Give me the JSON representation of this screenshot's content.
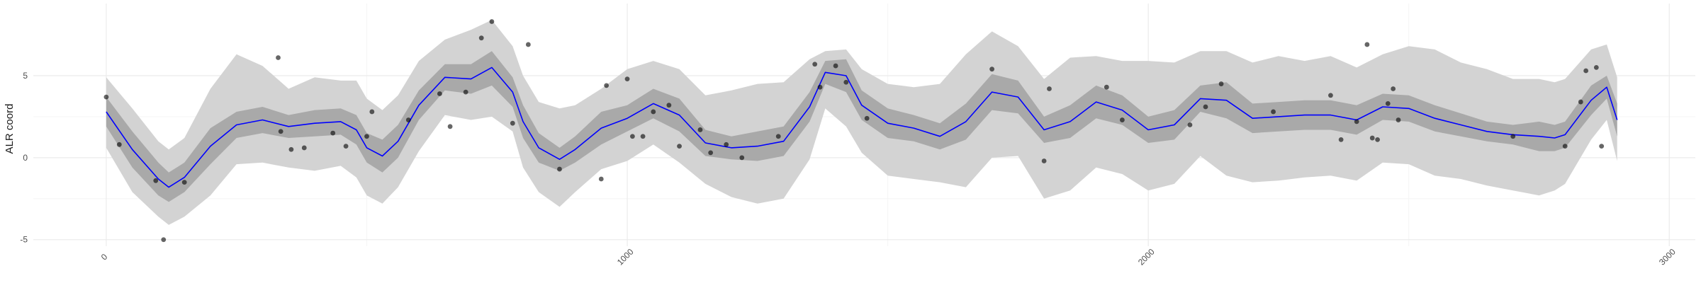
{
  "chart_data": {
    "type": "line",
    "title": "",
    "xlabel": "",
    "ylabel": "ALR coord",
    "xlim": [
      -140,
      3050
    ],
    "ylim": [
      -5.4,
      9.4
    ],
    "x_ticks": [
      0,
      1000,
      2000,
      3000
    ],
    "x_tick_labels": [
      "0",
      "1000",
      "2000",
      "3000"
    ],
    "y_ticks": [
      -5,
      0,
      5
    ],
    "y_tick_labels": [
      "-5",
      "0",
      "5"
    ],
    "grid": true,
    "legend": "none",
    "colors": {
      "line": "#0000ff",
      "inner_band": "#a9a9a9",
      "outer_band": "#d3d3d3",
      "points": "#000000",
      "grid_major": "#ebebeb",
      "grid_minor": "#f5f5f5"
    },
    "series": [
      {
        "type": "mean_line",
        "x": [
          0,
          50,
          100,
          120,
          150,
          200,
          250,
          300,
          350,
          400,
          450,
          480,
          500,
          530,
          560,
          600,
          650,
          700,
          740,
          780,
          800,
          830,
          870,
          900,
          950,
          1000,
          1050,
          1100,
          1150,
          1200,
          1250,
          1300,
          1350,
          1380,
          1420,
          1450,
          1500,
          1550,
          1600,
          1650,
          1700,
          1750,
          1800,
          1850,
          1900,
          1950,
          2000,
          2050,
          2100,
          2150,
          2200,
          2250,
          2300,
          2350,
          2400,
          2450,
          2500,
          2550,
          2600,
          2650,
          2700,
          2750,
          2780,
          2800,
          2850,
          2880,
          2900
        ],
        "y": [
          2.8,
          0.5,
          -1.3,
          -1.8,
          -1.2,
          0.7,
          2.0,
          2.3,
          1.9,
          2.1,
          2.2,
          1.7,
          0.6,
          0.1,
          1.0,
          3.2,
          4.9,
          4.8,
          5.5,
          4.0,
          2.2,
          0.6,
          -0.1,
          0.5,
          1.8,
          2.4,
          3.3,
          2.6,
          0.9,
          0.6,
          0.7,
          1.0,
          3.1,
          5.2,
          5.0,
          3.2,
          2.1,
          1.8,
          1.3,
          2.2,
          4.0,
          3.7,
          1.7,
          2.2,
          3.4,
          2.9,
          1.7,
          2.0,
          3.6,
          3.5,
          2.4,
          2.5,
          2.6,
          2.6,
          2.3,
          3.1,
          3.0,
          2.4,
          2.0,
          1.6,
          1.4,
          1.3,
          1.2,
          1.4,
          3.5,
          4.3,
          2.3
        ]
      },
      {
        "type": "inner_band",
        "x": [
          0,
          50,
          100,
          120,
          150,
          200,
          250,
          300,
          350,
          400,
          450,
          480,
          500,
          530,
          560,
          600,
          650,
          700,
          740,
          780,
          800,
          830,
          870,
          900,
          950,
          1000,
          1050,
          1100,
          1150,
          1200,
          1250,
          1300,
          1350,
          1380,
          1420,
          1450,
          1500,
          1550,
          1600,
          1650,
          1700,
          1750,
          1800,
          1850,
          1900,
          1950,
          2000,
          2050,
          2100,
          2150,
          2200,
          2250,
          2300,
          2350,
          2400,
          2450,
          2500,
          2550,
          2600,
          2650,
          2700,
          2750,
          2780,
          2800,
          2850,
          2880,
          2900
        ],
        "lower": [
          1.9,
          -0.6,
          -2.3,
          -2.7,
          -2.1,
          -0.4,
          1.2,
          1.5,
          1.2,
          1.3,
          1.4,
          0.8,
          -0.3,
          -0.9,
          0.0,
          2.3,
          4.1,
          3.9,
          4.4,
          3.1,
          1.2,
          -0.3,
          -0.8,
          -0.3,
          0.8,
          1.6,
          2.4,
          1.6,
          0.1,
          -0.1,
          -0.2,
          0.1,
          2.2,
          4.5,
          4.0,
          2.3,
          1.2,
          1.0,
          0.5,
          1.1,
          2.9,
          2.7,
          0.9,
          1.2,
          2.4,
          2.0,
          0.9,
          1.1,
          2.8,
          2.4,
          1.5,
          1.6,
          1.7,
          1.7,
          1.4,
          2.3,
          2.2,
          1.6,
          1.3,
          1.0,
          0.8,
          0.4,
          0.4,
          0.6,
          2.6,
          3.6,
          1.3
        ],
        "upper": [
          3.7,
          1.6,
          -0.3,
          -0.9,
          -0.3,
          1.8,
          2.8,
          3.1,
          2.6,
          2.9,
          3.0,
          2.6,
          1.5,
          1.1,
          2.0,
          4.1,
          5.7,
          5.7,
          6.5,
          4.9,
          3.2,
          1.5,
          0.6,
          1.3,
          2.8,
          3.2,
          4.2,
          3.6,
          1.7,
          1.3,
          1.6,
          1.9,
          4.0,
          5.9,
          6.0,
          4.1,
          3.0,
          2.6,
          2.1,
          3.3,
          5.1,
          4.7,
          2.5,
          3.2,
          4.4,
          3.8,
          2.5,
          2.9,
          4.4,
          4.6,
          3.3,
          3.4,
          3.5,
          3.5,
          3.2,
          3.9,
          3.8,
          3.2,
          2.7,
          2.2,
          2.0,
          2.2,
          2.0,
          2.2,
          4.4,
          5.0,
          3.3
        ]
      },
      {
        "type": "outer_band",
        "x": [
          0,
          50,
          100,
          120,
          150,
          200,
          250,
          300,
          350,
          400,
          450,
          480,
          500,
          530,
          560,
          600,
          650,
          700,
          740,
          780,
          800,
          830,
          870,
          900,
          950,
          1000,
          1050,
          1100,
          1150,
          1200,
          1250,
          1300,
          1350,
          1380,
          1420,
          1450,
          1500,
          1550,
          1600,
          1650,
          1700,
          1750,
          1800,
          1850,
          1900,
          1950,
          2000,
          2050,
          2100,
          2150,
          2200,
          2250,
          2300,
          2350,
          2400,
          2450,
          2500,
          2550,
          2600,
          2650,
          2700,
          2750,
          2780,
          2800,
          2850,
          2880,
          2900
        ],
        "lower": [
          0.6,
          -2.1,
          -3.6,
          -4.1,
          -3.6,
          -2.3,
          -0.4,
          -0.3,
          -0.6,
          -0.8,
          -0.5,
          -1.2,
          -2.3,
          -2.8,
          -1.8,
          0.4,
          2.6,
          2.3,
          2.5,
          1.6,
          -0.6,
          -2.1,
          -3.0,
          -2.1,
          -0.7,
          -0.2,
          0.8,
          -0.3,
          -1.6,
          -2.4,
          -2.8,
          -2.5,
          -0.1,
          3.0,
          1.9,
          0.3,
          -1.1,
          -1.3,
          -1.5,
          -1.8,
          0.0,
          0.1,
          -2.5,
          -2.0,
          -0.6,
          -1.0,
          -2.0,
          -1.6,
          0.1,
          -1.1,
          -1.5,
          -1.4,
          -1.2,
          -1.1,
          -1.4,
          -0.3,
          -0.4,
          -1.1,
          -1.3,
          -1.7,
          -2.0,
          -2.3,
          -2.0,
          -1.6,
          1.1,
          2.3,
          -0.2
        ]
      },
      {
        "type": "outer_band_upper",
        "x": [
          0,
          50,
          100,
          120,
          150,
          200,
          250,
          300,
          350,
          400,
          450,
          480,
          500,
          530,
          560,
          600,
          650,
          700,
          740,
          780,
          800,
          830,
          870,
          900,
          950,
          1000,
          1050,
          1100,
          1150,
          1200,
          1250,
          1300,
          1350,
          1380,
          1420,
          1450,
          1500,
          1550,
          1600,
          1650,
          1700,
          1750,
          1800,
          1850,
          1900,
          1950,
          2000,
          2050,
          2100,
          2150,
          2200,
          2250,
          2300,
          2350,
          2400,
          2450,
          2500,
          2550,
          2600,
          2650,
          2700,
          2750,
          2780,
          2800,
          2850,
          2880,
          2900
        ],
        "upper": [
          4.9,
          3.0,
          1.0,
          0.5,
          1.2,
          4.2,
          6.3,
          5.6,
          4.2,
          4.9,
          4.7,
          4.7,
          3.6,
          2.9,
          3.8,
          5.9,
          7.2,
          7.8,
          8.4,
          6.8,
          5.0,
          3.4,
          3.0,
          3.2,
          4.2,
          5.4,
          5.9,
          5.4,
          3.8,
          4.1,
          4.5,
          4.6,
          6.0,
          6.5,
          6.6,
          5.4,
          4.5,
          4.3,
          4.5,
          6.3,
          7.7,
          6.8,
          4.8,
          6.1,
          6.2,
          5.9,
          5.9,
          5.8,
          6.5,
          6.5,
          5.8,
          6.2,
          5.9,
          6.2,
          5.5,
          6.3,
          6.8,
          6.6,
          5.8,
          5.4,
          4.8,
          4.8,
          4.6,
          4.8,
          6.6,
          6.9,
          4.9
        ]
      }
    ],
    "points": {
      "x": [
        0,
        25,
        95,
        110,
        150,
        330,
        335,
        355,
        380,
        435,
        460,
        500,
        510,
        580,
        640,
        660,
        690,
        720,
        740,
        780,
        810,
        870,
        950,
        960,
        1000,
        1010,
        1030,
        1050,
        1080,
        1100,
        1140,
        1160,
        1190,
        1220,
        1290,
        1360,
        1370,
        1400,
        1420,
        1460,
        1700,
        1800,
        1810,
        1920,
        1950,
        2080,
        2110,
        2140,
        2240,
        2350,
        2370,
        2400,
        2420,
        2430,
        2440,
        2460,
        2470,
        2480,
        2700,
        2800,
        2830,
        2840,
        2860,
        2870
      ],
      "y": [
        3.7,
        0.8,
        -1.4,
        -5.0,
        -1.5,
        6.1,
        1.6,
        0.5,
        0.6,
        1.5,
        0.7,
        1.3,
        2.8,
        2.3,
        3.9,
        1.9,
        4.0,
        7.3,
        8.3,
        2.1,
        6.9,
        -0.7,
        -1.3,
        4.4,
        4.8,
        1.3,
        1.3,
        2.8,
        3.2,
        0.7,
        1.7,
        0.3,
        0.8,
        0.0,
        1.3,
        5.7,
        4.3,
        5.6,
        4.6,
        2.4,
        5.4,
        -0.2,
        4.2,
        4.3,
        2.3,
        2.0,
        3.1,
        4.5,
        2.8,
        3.8,
        1.1,
        2.2,
        6.9,
        1.2,
        1.1,
        3.3,
        4.2,
        2.3,
        1.3,
        0.7,
        3.4,
        5.3,
        5.5,
        0.7
      ]
    }
  }
}
